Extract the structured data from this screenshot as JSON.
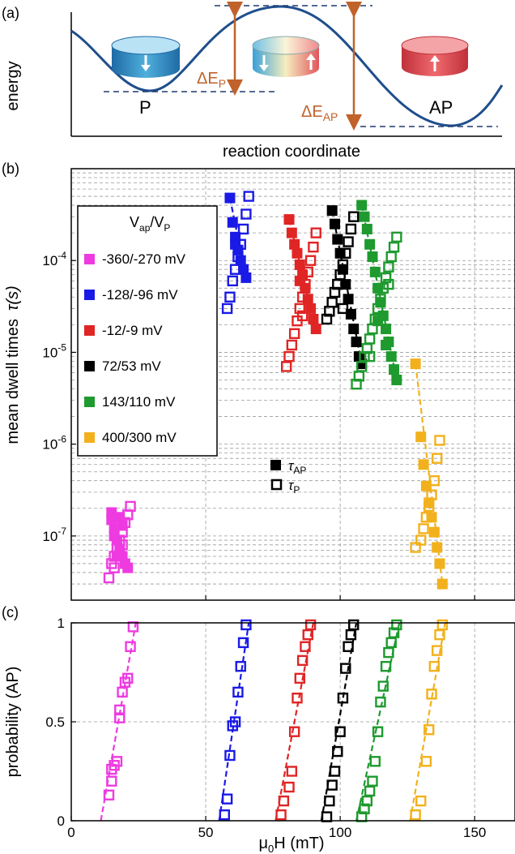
{
  "panel_labels": {
    "a": "(a)",
    "b": "(b)",
    "c": "(c)"
  },
  "panel_a": {
    "ylabel": "energy",
    "xlabel": "reaction coordinate",
    "state_p": "P",
    "state_ap": "AP",
    "barrier_p_main": "ΔE",
    "barrier_p_sub": "P",
    "barrier_ap_main": "ΔE",
    "barrier_ap_sub": "AP",
    "colors": {
      "p_disk": "#2e86c1",
      "ap_disk": "#d9434b",
      "curve": "#1f4e8c",
      "arrow": "#c0622a",
      "dashed": "#1f3a6e"
    }
  },
  "chart_data": [
    {
      "type": "scatter",
      "panel": "b",
      "ylabel_main": "mean dwell times",
      "ylabel_symbol": "τ(s)",
      "yscale": "log",
      "ylim": [
        2e-08,
        0.001
      ],
      "xlim": [
        0,
        165
      ],
      "yticks": [
        {
          "v": 1e-07,
          "label": "10-7"
        },
        {
          "v": 1e-06,
          "label": "10-6"
        },
        {
          "v": 1e-05,
          "label": "10-5"
        },
        {
          "v": 0.0001,
          "label": "10-4"
        }
      ],
      "legend_title_main": "V",
      "legend_title_sub1": "ap",
      "legend_title_mid": "/V",
      "legend_title_sub2": "P",
      "marker_legend": [
        {
          "symbol": "τ",
          "sub": "AP",
          "filled": true
        },
        {
          "symbol": "τ",
          "sub": "P",
          "filled": false
        }
      ],
      "series": [
        {
          "name": "-360/-270 mV",
          "color": "#ee3be0",
          "tau_ap": [
            [
              15,
              1.8e-07
            ],
            [
              16,
              1.2e-07
            ],
            [
              17,
              9e-08
            ],
            [
              18,
              7e-08
            ],
            [
              19,
              6e-08
            ],
            [
              20,
              5e-08
            ],
            [
              21,
              4.5e-08
            ],
            [
              15,
              1.5e-07
            ],
            [
              16,
              1e-07
            ],
            [
              18,
              1.6e-07
            ],
            [
              19,
              1.3e-07
            ],
            [
              17,
              6e-08
            ]
          ],
          "tau_p": [
            [
              14,
              3.5e-08
            ],
            [
              15,
              5e-08
            ],
            [
              16,
              6e-08
            ],
            [
              17,
              7.5e-08
            ],
            [
              18,
              9e-08
            ],
            [
              19,
              1.1e-07
            ],
            [
              20,
              1.4e-07
            ],
            [
              21,
              1.7e-07
            ],
            [
              22,
              2.1e-07
            ],
            [
              16,
              4.5e-08
            ],
            [
              19,
              8e-08
            ]
          ]
        },
        {
          "name": "-128/-96 mV",
          "color": "#1a1ae6",
          "tau_ap": [
            [
              59,
              0.00048
            ],
            [
              60,
              0.00026
            ],
            [
              61,
              0.00018
            ],
            [
              62,
              0.00013
            ],
            [
              63,
              0.0001
            ],
            [
              64,
              8e-05
            ],
            [
              65,
              6.5e-05
            ],
            [
              61,
              0.00015
            ]
          ],
          "tau_p": [
            [
              58,
              3e-05
            ],
            [
              59,
              4e-05
            ],
            [
              60,
              6e-05
            ],
            [
              61,
              8e-05
            ],
            [
              62,
              0.00011
            ],
            [
              63,
              0.00015
            ],
            [
              64,
              0.00022
            ],
            [
              65,
              0.00032
            ],
            [
              66,
              0.0005
            ]
          ]
        },
        {
          "name": "-12/-9 mV",
          "color": "#e02525",
          "tau_ap": [
            [
              81,
              0.00028
            ],
            [
              82,
              0.0002
            ],
            [
              83,
              0.00015
            ],
            [
              84,
              0.00012
            ],
            [
              85,
              9e-05
            ],
            [
              86,
              7e-05
            ],
            [
              87,
              5e-05
            ],
            [
              88,
              3.8e-05
            ],
            [
              89,
              3e-05
            ],
            [
              90,
              2.3e-05
            ],
            [
              91,
              1.8e-05
            ],
            [
              85,
              6e-05
            ]
          ],
          "tau_p": [
            [
              80,
              7e-06
            ],
            [
              81,
              9e-06
            ],
            [
              82,
              1.2e-05
            ],
            [
              83,
              1.6e-05
            ],
            [
              84,
              2.2e-05
            ],
            [
              85,
              3e-05
            ],
            [
              86,
              4e-05
            ],
            [
              87,
              5.5e-05
            ],
            [
              88,
              7.5e-05
            ],
            [
              89,
              0.0001
            ],
            [
              90,
              0.00014
            ],
            [
              91,
              0.0002
            ],
            [
              86,
              2.5e-05
            ]
          ]
        },
        {
          "name": "72/53 mV",
          "color": "#000000",
          "tau_ap": [
            [
              97,
              0.00035
            ],
            [
              98,
              0.00025
            ],
            [
              99,
              0.00017
            ],
            [
              100,
              0.00012
            ],
            [
              101,
              8e-05
            ],
            [
              102,
              5.5e-05
            ],
            [
              103,
              3.8e-05
            ],
            [
              104,
              2.6e-05
            ],
            [
              105,
              1.8e-05
            ],
            [
              106,
              1.3e-05
            ],
            [
              107,
              9e-06
            ],
            [
              108,
              7.5e-06
            ]
          ],
          "tau_p": [
            [
              95,
              2.3e-05
            ],
            [
              96,
              2.8e-05
            ],
            [
              97,
              3.5e-05
            ],
            [
              98,
              4.5e-05
            ],
            [
              99,
              5.5e-05
            ],
            [
              100,
              7e-05
            ],
            [
              101,
              9e-05
            ],
            [
              102,
              0.00012
            ],
            [
              103,
              0.00016
            ],
            [
              104,
              0.00022
            ],
            [
              105,
              0.0003
            ],
            [
              101,
              3e-05
            ]
          ]
        },
        {
          "name": "143/110 mV",
          "color": "#1e9a2e",
          "tau_ap": [
            [
              108,
              0.0004
            ],
            [
              109,
              0.0003
            ],
            [
              110,
              0.00022
            ],
            [
              111,
              0.00015
            ],
            [
              112,
              0.00011
            ],
            [
              113,
              7.5e-05
            ],
            [
              114,
              5e-05
            ],
            [
              115,
              3.5e-05
            ],
            [
              116,
              2.5e-05
            ],
            [
              117,
              1.8e-05
            ],
            [
              118,
              1.3e-05
            ],
            [
              119,
              9e-06
            ],
            [
              120,
              6.5e-06
            ],
            [
              121,
              5e-06
            ],
            [
              114,
              2.2e-05
            ],
            [
              117,
              1.2e-05
            ]
          ],
          "tau_p": [
            [
              106,
              4.5e-06
            ],
            [
              107,
              5.5e-06
            ],
            [
              108,
              7e-06
            ],
            [
              109,
              9e-06
            ],
            [
              110,
              1.1e-05
            ],
            [
              111,
              1.4e-05
            ],
            [
              112,
              1.8e-05
            ],
            [
              113,
              2.3e-05
            ],
            [
              114,
              3e-05
            ],
            [
              115,
              3.8e-05
            ],
            [
              116,
              5e-05
            ],
            [
              117,
              6.5e-05
            ],
            [
              118,
              8.5e-05
            ],
            [
              119,
              0.00011
            ],
            [
              120,
              0.00014
            ],
            [
              121,
              0.00018
            ],
            [
              111,
              9e-06
            ],
            [
              118,
              5.5e-05
            ]
          ]
        },
        {
          "name": "400/300 mV",
          "color": "#f2b11c",
          "tau_ap": [
            [
              128,
              7.5e-06
            ],
            [
              130,
              1.2e-06
            ],
            [
              131,
              6e-07
            ],
            [
              132,
              3.5e-07
            ],
            [
              133,
              2.3e-07
            ],
            [
              134,
              1.6e-07
            ],
            [
              135,
              1.1e-07
            ],
            [
              136,
              7.5e-08
            ],
            [
              137,
              5e-08
            ],
            [
              138,
              3e-08
            ]
          ],
          "tau_p": [
            [
              128,
              7.5e-08
            ],
            [
              130,
              9e-08
            ],
            [
              131,
              1.2e-07
            ],
            [
              132,
              1.6e-07
            ],
            [
              133,
              2.1e-07
            ],
            [
              134,
              2.8e-07
            ],
            [
              135,
              4e-07
            ],
            [
              136,
              7e-07
            ],
            [
              137,
              1.1e-06
            ]
          ]
        }
      ]
    },
    {
      "type": "scatter",
      "panel": "c",
      "ylabel": "probability (AP)",
      "xlabel_main": "μ",
      "xlabel_sub": "0",
      "xlabel_rest": "H (mT)",
      "xlim": [
        0,
        165
      ],
      "ylim": [
        0,
        1
      ],
      "xticks": [
        {
          "v": 0,
          "label": "0"
        },
        {
          "v": 50,
          "label": "50"
        },
        {
          "v": 100,
          "label": "100"
        },
        {
          "v": 150,
          "label": "150"
        }
      ],
      "yticks": [
        {
          "v": 0,
          "label": "0"
        },
        {
          "v": 0.5,
          "label": "0.5"
        },
        {
          "v": 1,
          "label": "1"
        }
      ],
      "series": [
        {
          "name": "-360/-270 mV",
          "color": "#ee3be0",
          "points": [
            [
              14,
              0.13
            ],
            [
              15,
              0.2
            ],
            [
              15,
              0.26
            ],
            [
              16,
              0.28
            ],
            [
              17,
              0.3
            ],
            [
              18,
              0.52
            ],
            [
              18,
              0.56
            ],
            [
              19,
              0.65
            ],
            [
              20,
              0.7
            ],
            [
              21,
              0.72
            ],
            [
              22,
              0.88
            ],
            [
              23,
              0.98
            ]
          ],
          "fit": [
            [
              11,
              0
            ],
            [
              24,
              1
            ]
          ]
        },
        {
          "name": "-128/-96 mV",
          "color": "#1a1ae6",
          "points": [
            [
              57,
              0.03
            ],
            [
              58,
              0.11
            ],
            [
              59,
              0.33
            ],
            [
              60,
              0.48
            ],
            [
              61,
              0.5
            ],
            [
              62,
              0.65
            ],
            [
              63,
              0.78
            ],
            [
              64,
              0.9
            ],
            [
              65,
              0.99
            ]
          ],
          "fit": [
            [
              55,
              0
            ],
            [
              66,
              1
            ]
          ]
        },
        {
          "name": "-12/-9 mV",
          "color": "#e02525",
          "points": [
            [
              78,
              0.03
            ],
            [
              79,
              0.1
            ],
            [
              81,
              0.17
            ],
            [
              82,
              0.25
            ],
            [
              83,
              0.45
            ],
            [
              84,
              0.62
            ],
            [
              85,
              0.72
            ],
            [
              86,
              0.81
            ],
            [
              87,
              0.88
            ],
            [
              88,
              0.94
            ],
            [
              89,
              0.99
            ]
          ],
          "fit": [
            [
              76,
              0
            ],
            [
              90,
              1
            ]
          ]
        },
        {
          "name": "72/53 mV",
          "color": "#000000",
          "points": [
            [
              95,
              0.02
            ],
            [
              96,
              0.1
            ],
            [
              97,
              0.18
            ],
            [
              98,
              0.25
            ],
            [
              99,
              0.35
            ],
            [
              100,
              0.45
            ],
            [
              101,
              0.62
            ],
            [
              102,
              0.77
            ],
            [
              103,
              0.88
            ],
            [
              104,
              0.94
            ],
            [
              105,
              0.99
            ]
          ],
          "fit": [
            [
              93,
              0
            ],
            [
              106,
              1
            ]
          ]
        },
        {
          "name": "143/110 mV",
          "color": "#1e9a2e",
          "points": [
            [
              108,
              0.02
            ],
            [
              109,
              0.06
            ],
            [
              110,
              0.1
            ],
            [
              111,
              0.15
            ],
            [
              112,
              0.2
            ],
            [
              113,
              0.3
            ],
            [
              114,
              0.45
            ],
            [
              115,
              0.6
            ],
            [
              116,
              0.68
            ],
            [
              117,
              0.78
            ],
            [
              118,
              0.85
            ],
            [
              119,
              0.9
            ],
            [
              120,
              0.95
            ],
            [
              121,
              0.99
            ]
          ],
          "fit": [
            [
              106,
              0
            ],
            [
              122,
              1
            ]
          ]
        },
        {
          "name": "400/300 mV",
          "color": "#f2b11c",
          "points": [
            [
              128,
              0.03
            ],
            [
              130,
              0.1
            ],
            [
              132,
              0.3
            ],
            [
              133,
              0.46
            ],
            [
              134,
              0.64
            ],
            [
              135,
              0.78
            ],
            [
              136,
              0.86
            ],
            [
              137,
              0.94
            ],
            [
              138,
              0.99
            ]
          ],
          "fit": [
            [
              126,
              0
            ],
            [
              139,
              1
            ]
          ]
        }
      ]
    }
  ]
}
